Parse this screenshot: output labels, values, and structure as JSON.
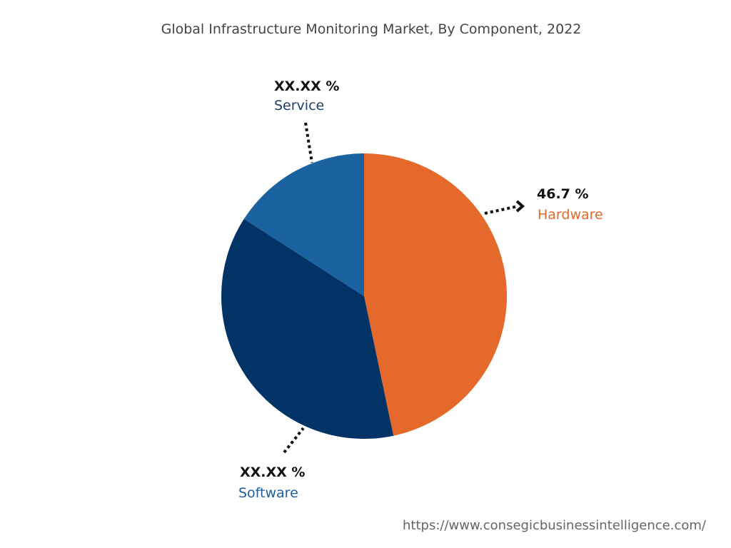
{
  "chart_data": {
    "type": "pie",
    "title": "Global Infrastructure Monitoring Market, By Component, 2022",
    "slices": [
      {
        "name": "Hardware",
        "value": 46.7,
        "label": "46.7 %",
        "color": "#E4692A",
        "text_color": "#E4692A"
      },
      {
        "name": "Software",
        "value": 37.4,
        "label": "XX.XX %",
        "color": "#023366",
        "text_color": "#1E5FA0"
      },
      {
        "name": "Service",
        "value": 15.9,
        "label": "XX.XX %",
        "color": "#1A62A0",
        "text_color": "#1D3F6E"
      }
    ],
    "start": "top",
    "direction": "clockwise"
  },
  "footer": {
    "url": "https://www.consegicbusinessintelligence.com/"
  }
}
